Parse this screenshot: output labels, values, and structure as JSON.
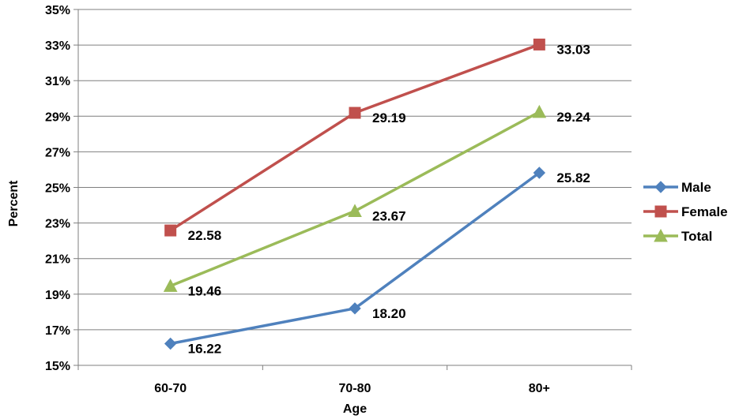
{
  "chart_data": {
    "type": "line",
    "categories": [
      "60-70",
      "70-80",
      "80+"
    ],
    "series": [
      {
        "name": "Male",
        "values": [
          16.22,
          18.2,
          25.82
        ],
        "labels": [
          "16.22",
          "18.20",
          "25.82"
        ],
        "color": "#4f81bd",
        "marker": "diamond"
      },
      {
        "name": "Female",
        "values": [
          22.58,
          29.19,
          33.03
        ],
        "labels": [
          "22.58",
          "29.19",
          "33.03"
        ],
        "color": "#c0504d",
        "marker": "square"
      },
      {
        "name": "Total",
        "values": [
          19.46,
          23.67,
          29.24
        ],
        "labels": [
          "19.46",
          "23.67",
          "29.24"
        ],
        "color": "#9bbb59",
        "marker": "triangle"
      }
    ],
    "xlabel": "Age",
    "ylabel": "Percent",
    "ylim": [
      15,
      35
    ],
    "yticks": [
      "15%",
      "17%",
      "19%",
      "21%",
      "23%",
      "25%",
      "27%",
      "29%",
      "31%",
      "33%",
      "35%"
    ],
    "grid": true,
    "legend": "right"
  }
}
